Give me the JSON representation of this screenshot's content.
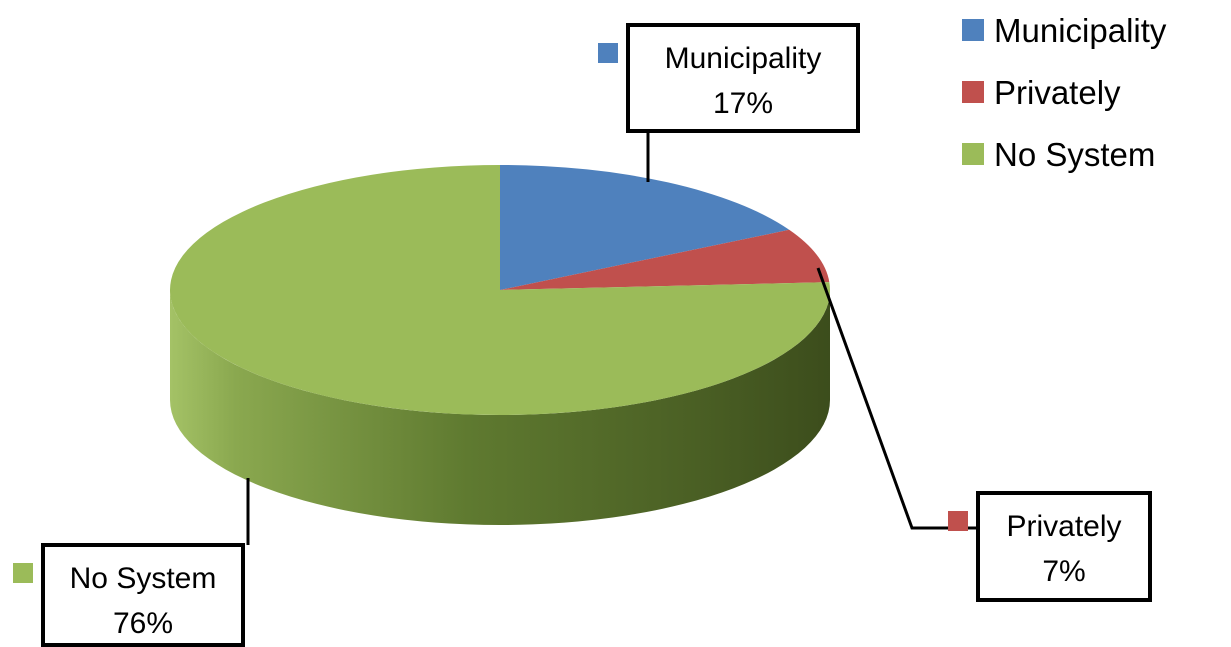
{
  "chart_data": {
    "type": "pie",
    "style": "3d",
    "categories": [
      "Municipality",
      "Privately",
      "No System"
    ],
    "values": [
      17,
      7,
      76
    ],
    "value_labels": [
      "17%",
      "7%",
      "76%"
    ],
    "colors": [
      "#4f81bd",
      "#c0504d",
      "#9bbb59"
    ],
    "legend_position": "top-right",
    "title": ""
  }
}
